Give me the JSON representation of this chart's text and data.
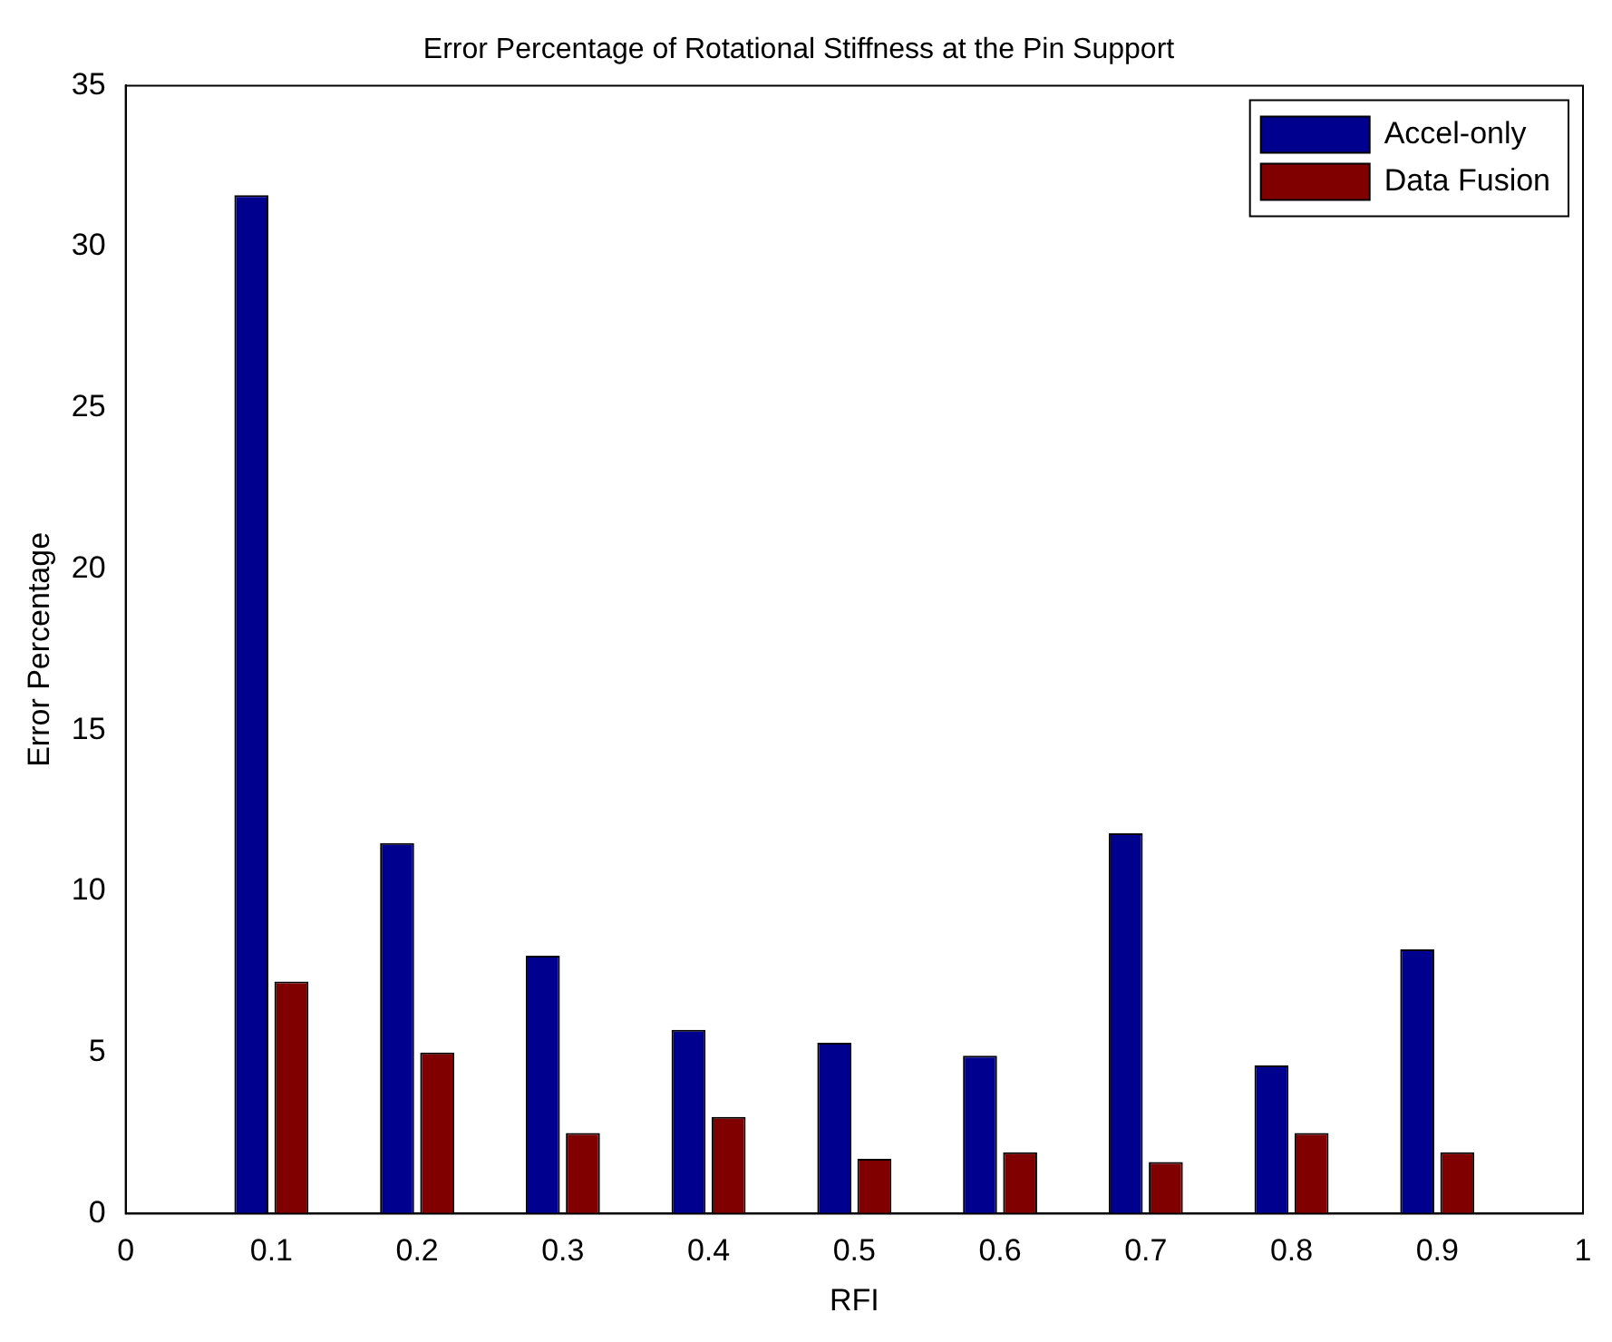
{
  "chart_data": {
    "type": "bar",
    "title": "Error Percentage of Rotational Stiffness at the Pin Support",
    "xlabel": "RFI",
    "ylabel": "Error Percentage",
    "x": [
      0.1,
      0.2,
      0.3,
      0.4,
      0.5,
      0.6,
      0.7,
      0.8,
      0.9
    ],
    "series": [
      {
        "name": "Accel-only",
        "color": "#00008f",
        "values": [
          31.6,
          11.5,
          8.0,
          5.7,
          5.3,
          4.9,
          11.8,
          4.6,
          8.2
        ]
      },
      {
        "name": "Data Fusion",
        "color": "#800000",
        "values": [
          7.2,
          5.0,
          2.5,
          3.0,
          1.7,
          1.9,
          1.6,
          2.5,
          1.9
        ]
      }
    ],
    "xlim": [
      0,
      1
    ],
    "xticks": [
      0,
      0.1,
      0.2,
      0.3,
      0.4,
      0.5,
      0.6,
      0.7,
      0.8,
      0.9,
      1
    ],
    "ylim": [
      0,
      35
    ],
    "yticks": [
      0,
      5,
      10,
      15,
      20,
      25,
      30,
      35
    ],
    "grid": false,
    "legend": "top right"
  }
}
